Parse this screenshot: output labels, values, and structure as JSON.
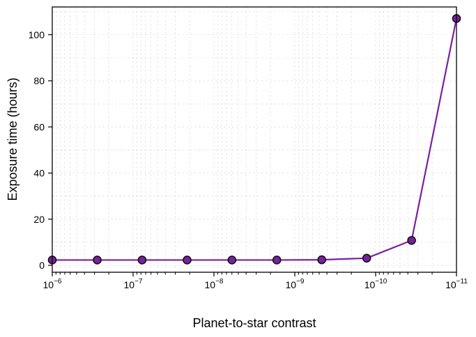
{
  "chart_data": {
    "type": "line",
    "xlabel": "Planet-to-star contrast",
    "ylabel": "Exposure time (hours)",
    "x_scale": "log",
    "x_inverted": true,
    "xlim": [
      1e-06,
      1e-11
    ],
    "ylim": [
      -3,
      112
    ],
    "grid": true,
    "x_ticks": [
      {
        "value": 1e-06,
        "base": "10",
        "exp": "−6"
      },
      {
        "value": 1e-07,
        "base": "10",
        "exp": "−7"
      },
      {
        "value": 1e-08,
        "base": "10",
        "exp": "−8"
      },
      {
        "value": 1e-09,
        "base": "10",
        "exp": "−9"
      },
      {
        "value": 1e-10,
        "base": "10",
        "exp": "−10"
      },
      {
        "value": 1e-11,
        "base": "10",
        "exp": "−11"
      }
    ],
    "y_ticks": [
      "0",
      "20",
      "40",
      "60",
      "80",
      "100"
    ],
    "series": [
      {
        "color": "#7b1fa2",
        "marker_edge": "#111111",
        "x": [
          1e-06,
          2.78e-07,
          7.74e-08,
          2.15e-08,
          5.99e-09,
          1.67e-09,
          4.64e-10,
          1.29e-10,
          3.59e-11,
          1e-11
        ],
        "y": [
          2.3,
          2.3,
          2.3,
          2.3,
          2.3,
          2.3,
          2.4,
          3.1,
          10.8,
          107.0
        ]
      }
    ]
  }
}
